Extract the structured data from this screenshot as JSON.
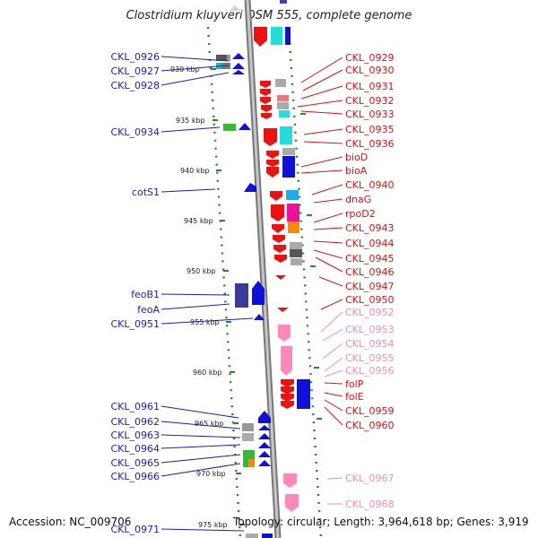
{
  "title": "Clostridium kluyveri DSM 555, complete genome",
  "accession_label": "Accession: NC_009706",
  "topology_label": "Topology: circular; Length: 3,964,618 bp; Genes: 3,919",
  "scale_ticks": [
    "930 kbp",
    "935 kbp",
    "940 kbp",
    "945 kbp",
    "950 kbp",
    "955 kbp",
    "960 kbp",
    "965 kbp",
    "970 kbp",
    "975 kbp"
  ],
  "genes_left": [
    "CKL_0926",
    "CKL_0927",
    "CKL_0928",
    "CKL_0934",
    "cotS1",
    "feoB1",
    "feoA",
    "CKL_0951",
    "CKL_0961",
    "CKL_0962",
    "CKL_0963",
    "CKL_0964",
    "CKL_0965",
    "CKL_0966",
    "CKL_0971"
  ],
  "genes_right": [
    "CKL_0929",
    "CKL_0930",
    "CKL_0931",
    "CKL_0932",
    "CKL_0933",
    "CKL_0935",
    "CKL_0936",
    "bioD",
    "bioA",
    "CKL_0940",
    "dnaG",
    "rpoD2",
    "CKL_0943",
    "CKL_0944",
    "CKL_0945",
    "CKL_0946",
    "CKL_0947",
    "CKL_0950",
    "CKL_0952",
    "CKL_0953",
    "CKL_0954",
    "CKL_0955",
    "CKL_0956",
    "folP",
    "folE",
    "CKL_0959",
    "CKL_0960",
    "CKL_0967",
    "CKL_0968"
  ],
  "colors": {
    "left_label": "#1a1acc",
    "right_label": "#dd1111",
    "right_label_faded": "#f08cb8",
    "backbone": "#9a9a9a",
    "tick_green": "#2a8a2a"
  }
}
